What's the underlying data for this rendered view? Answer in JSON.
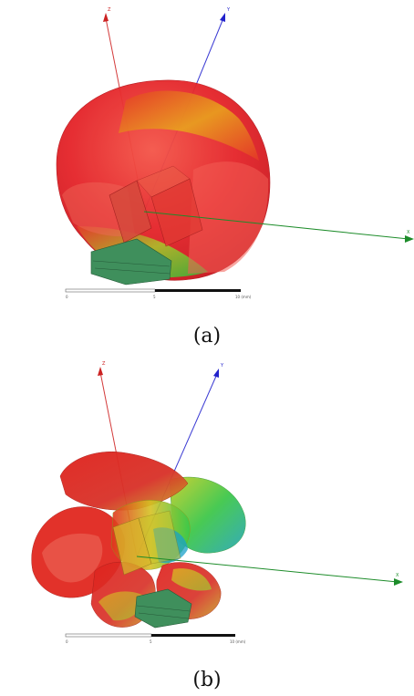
{
  "panels": [
    {
      "id": "a",
      "caption": "(a)",
      "axes": {
        "z_label": "Z",
        "y_label": "Y",
        "x_label": "X"
      },
      "scale_bar": {
        "labels": [
          "0",
          "5",
          "10 (mm)"
        ]
      },
      "colors": {
        "high": "#e8262c",
        "mid": "#b9c21a",
        "low": "#2fbf3a",
        "base": "#3f8f5c"
      }
    },
    {
      "id": "b",
      "caption": "(b)",
      "axes": {
        "z_label": "Z",
        "y_label": "Y",
        "x_label": "X"
      },
      "scale_bar": {
        "labels": [
          "0",
          "5",
          "10 (mm)"
        ]
      },
      "colors": {
        "high": "#e3232a",
        "mid": "#d8c020",
        "low": "#36c940",
        "cool": "#1aa0c8",
        "base": "#3f8f5c"
      }
    }
  ]
}
